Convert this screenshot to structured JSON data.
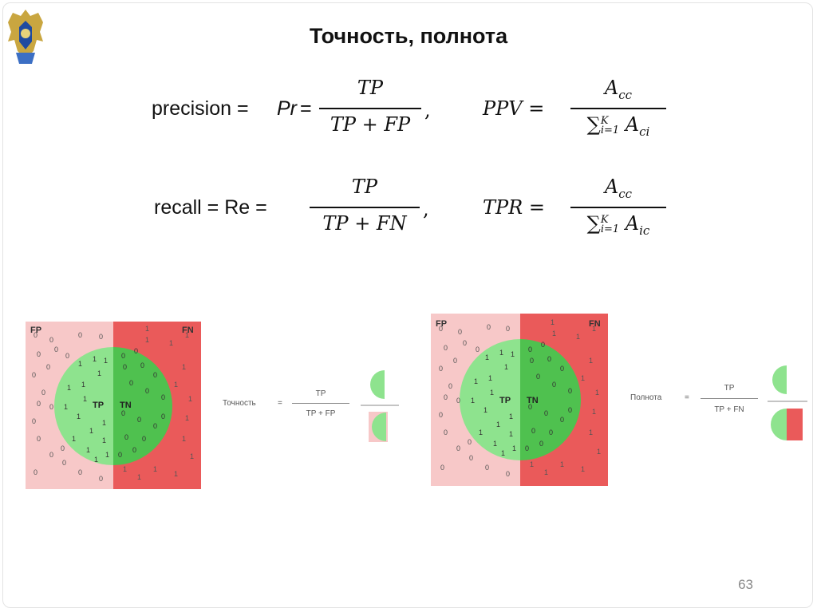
{
  "slide": {
    "title": "Точность, полнота",
    "page_number": "63"
  },
  "formulas": {
    "precision": {
      "prefix": "precision = ",
      "symbol": "Pr",
      "eq": "=",
      "num": "TP",
      "den": "TP + FP",
      "comma": ","
    },
    "ppv": {
      "lhs": "PPV =",
      "num": "Acc",
      "den": "∑",
      "den_sub": "i=1",
      "den_sup": "K",
      "den_term": "Aci"
    },
    "recall": {
      "prefix": "recall = Re =",
      "num": "TP",
      "den": "TP + FN",
      "comma": ","
    },
    "tpr": {
      "lhs": "TPR =",
      "num": "Acc",
      "den": "∑",
      "den_sub": "i=1",
      "den_sup": "K",
      "den_term": "Aic"
    }
  },
  "diagrams": {
    "left": {
      "fp_label": "FP",
      "fn_label": "FN",
      "tp_label": "TP",
      "tn_label": "TN",
      "metric_label": "Точность",
      "eq": "=",
      "num": "TP",
      "den": "TP + FP"
    },
    "right": {
      "fp_label": "FP",
      "fn_label": "FN",
      "tp_label": "TP",
      "tn_label": "TN",
      "metric_label": "Полнота",
      "eq": "=",
      "num": "TP",
      "den": "TP + FN"
    }
  },
  "colors": {
    "fp_bg": "#f7c8c8",
    "fn_bg": "#ea5a5a",
    "tp_circle": "#8ee38e",
    "tn_circle": "#4fc14f"
  }
}
